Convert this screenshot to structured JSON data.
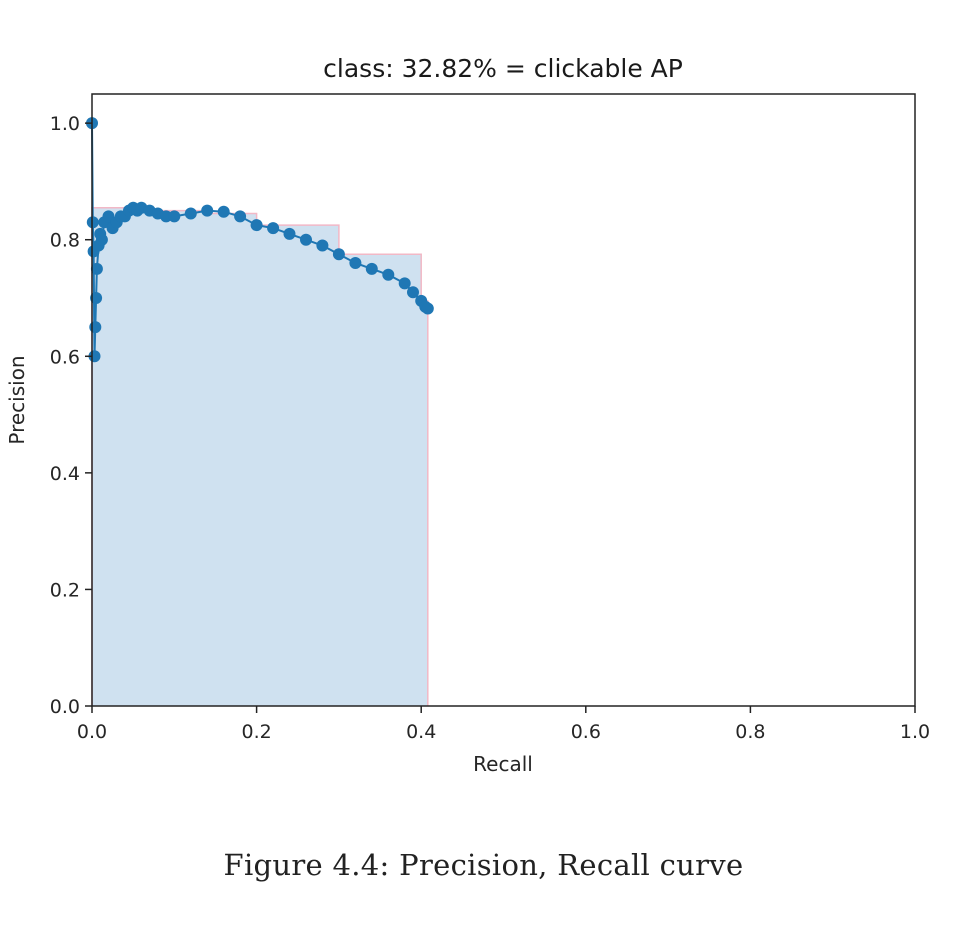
{
  "chart_data": {
    "type": "line",
    "title": "class: 32.82% = clickable AP",
    "xlabel": "Recall",
    "ylabel": "Precision",
    "xlim": [
      0.0,
      1.0
    ],
    "ylim": [
      0.0,
      1.05
    ],
    "xticks": [
      0.0,
      0.2,
      0.4,
      0.6,
      0.8,
      1.0
    ],
    "yticks": [
      0.0,
      0.2,
      0.4,
      0.6,
      0.8,
      1.0
    ],
    "x_tick_labels": [
      "0.0",
      "0.2",
      "0.4",
      "0.6",
      "0.8",
      "1.0"
    ],
    "y_tick_labels": [
      "0.0",
      "0.2",
      "0.4",
      "0.6",
      "0.8",
      "1.0"
    ],
    "grid": false,
    "series": [
      {
        "color": "#1f77b4",
        "marker": "circle",
        "x": [
          0.0,
          0.001,
          0.002,
          0.003,
          0.004,
          0.005,
          0.006,
          0.008,
          0.01,
          0.012,
          0.015,
          0.02,
          0.025,
          0.03,
          0.035,
          0.04,
          0.045,
          0.05,
          0.055,
          0.06,
          0.07,
          0.08,
          0.09,
          0.1,
          0.12,
          0.14,
          0.16,
          0.18,
          0.2,
          0.22,
          0.24,
          0.26,
          0.28,
          0.3,
          0.32,
          0.34,
          0.36,
          0.38,
          0.39,
          0.4,
          0.405,
          0.408
        ],
        "y": [
          1.0,
          0.83,
          0.78,
          0.6,
          0.65,
          0.7,
          0.75,
          0.79,
          0.81,
          0.8,
          0.83,
          0.84,
          0.82,
          0.83,
          0.84,
          0.84,
          0.85,
          0.855,
          0.85,
          0.855,
          0.85,
          0.845,
          0.84,
          0.84,
          0.845,
          0.85,
          0.848,
          0.84,
          0.825,
          0.82,
          0.81,
          0.8,
          0.79,
          0.775,
          0.76,
          0.75,
          0.74,
          0.725,
          0.71,
          0.695,
          0.685,
          0.682
        ]
      }
    ],
    "interpolated_precision": {
      "fill_color": "#cfe1f0",
      "edge_color": "#f2b8c6",
      "x": [
        0.0,
        0.0,
        0.055,
        0.055,
        0.14,
        0.14,
        0.2,
        0.2,
        0.3,
        0.3,
        0.4,
        0.4,
        0.408,
        0.408
      ],
      "y": [
        0.0,
        0.855,
        0.855,
        0.85,
        0.85,
        0.845,
        0.845,
        0.825,
        0.825,
        0.775,
        0.775,
        0.695,
        0.695,
        0.0
      ]
    }
  },
  "caption": "Figure 4.4:  Precision,  Recall curve"
}
